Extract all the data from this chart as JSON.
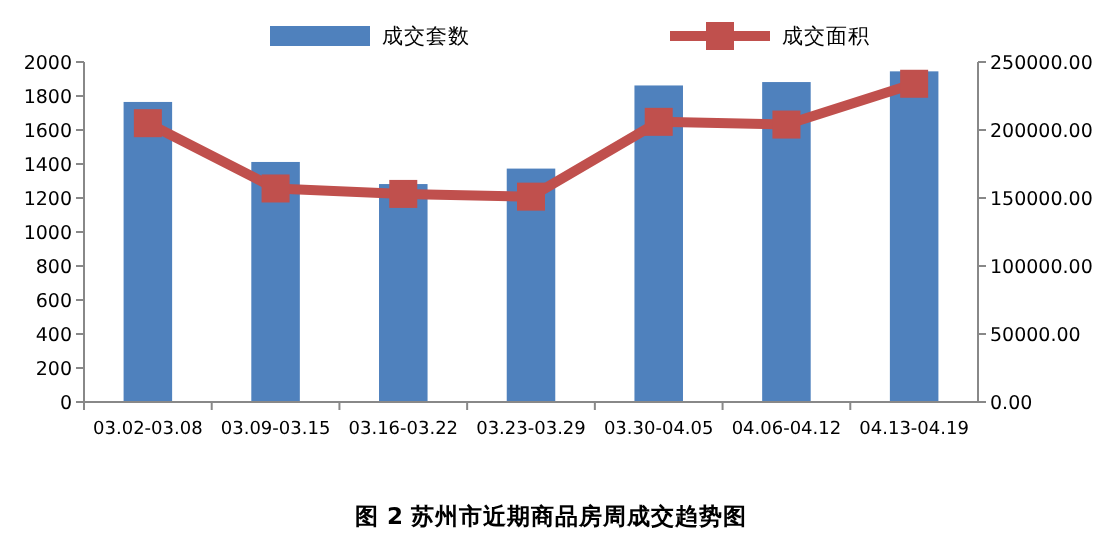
{
  "chart_data": {
    "type": "bar",
    "title": "图 2 苏州市近期商品房周成交趋势图",
    "categories": [
      "03.02-03.08",
      "03.09-03.15",
      "03.16-03.22",
      "03.23-03.29",
      "03.30-04.05",
      "04.06-04.12",
      "04.13-04.19"
    ],
    "series": [
      {
        "name": "成交套数",
        "color": "#4f81bd",
        "values": [
          1765,
          1412,
          1282,
          1373,
          1862,
          1882,
          1945
        ]
      },
      {
        "name": "成交面积",
        "type": "line",
        "axis": "y2",
        "color": "#c0504d",
        "marker": "square",
        "values": [
          205000,
          157000,
          153000,
          151000,
          206000,
          204000,
          234000
        ]
      }
    ],
    "ylim": [
      0,
      2000
    ],
    "yticks": [
      0,
      200,
      400,
      600,
      800,
      1000,
      1200,
      1400,
      1600,
      1800,
      2000
    ],
    "y2lim": [
      0,
      250000
    ],
    "y2ticks": [
      {
        "value": 0,
        "label": "0.00"
      },
      {
        "value": 50000,
        "label": "50000.00"
      },
      {
        "value": 100000,
        "label": "100000.00"
      },
      {
        "value": 150000,
        "label": "150000.00"
      },
      {
        "value": 200000,
        "label": "200000.00"
      },
      {
        "value": 250000,
        "label": "250000.00"
      }
    ],
    "legend": "top",
    "grid": false
  }
}
